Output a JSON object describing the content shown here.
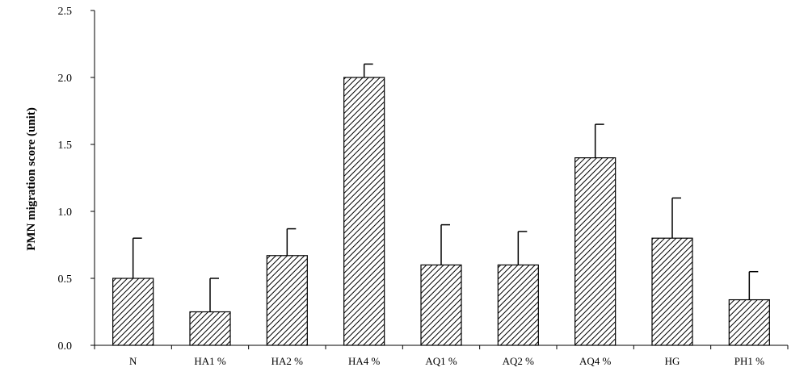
{
  "chart_data": {
    "type": "bar",
    "title": "",
    "xlabel": "",
    "ylabel": "PMN migration score (unit)",
    "ylim": [
      0,
      2.5
    ],
    "yticks": [
      "0.0",
      "0.5",
      "1.0",
      "1.5",
      "2.0",
      "2.5"
    ],
    "categories": [
      "N",
      "HA1 %",
      "HA2 %",
      "HA4 %",
      "AQ1 %",
      "AQ2 %",
      "AQ4 %",
      "HG",
      "PH1 %"
    ],
    "values": [
      0.5,
      0.25,
      0.67,
      2.0,
      0.6,
      0.6,
      1.4,
      0.8,
      0.34
    ],
    "errors": [
      0.3,
      0.25,
      0.2,
      0.1,
      0.3,
      0.25,
      0.25,
      0.3,
      0.21
    ],
    "bar_fill": "diagonal-hatch",
    "bar_color": "#000000",
    "grid": false
  }
}
